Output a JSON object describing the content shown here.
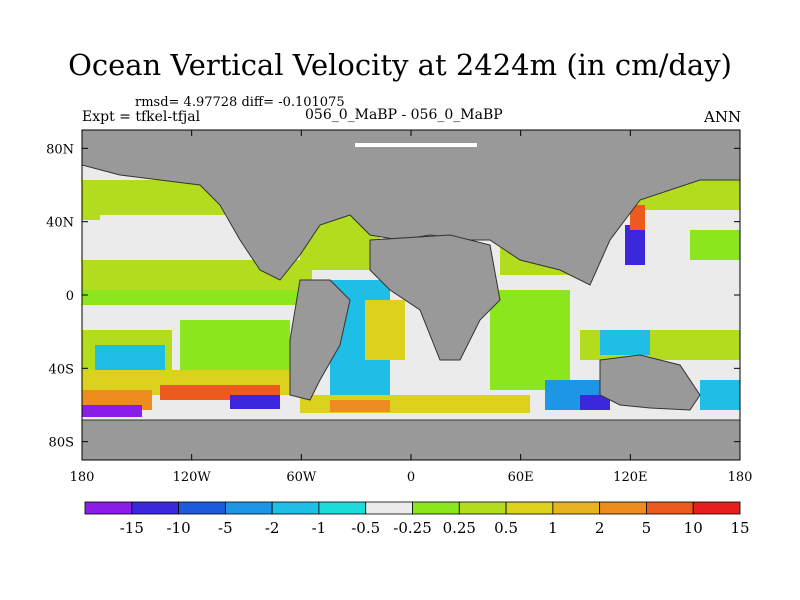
{
  "chart_data": {
    "type": "heatmap",
    "title": "Ocean Vertical Velocity at 2424m (in cm/day)",
    "stats": "rmsd= 4.97728 diff= -0.101075",
    "expt": "Expt = tfkel-tfjal",
    "cases": "056_0_MaBP - 056_0_MaBP",
    "season": "ANN",
    "x_ticks": [
      "180",
      "120W",
      "60W",
      "0",
      "60E",
      "120E",
      "180"
    ],
    "y_ticks": [
      "80N",
      "40N",
      "0",
      "40S",
      "80S"
    ],
    "xlim": [
      -180,
      180
    ],
    "ylim": [
      -90,
      90
    ],
    "land_color": "#999999",
    "colorbar": {
      "colors": [
        "#8a1ee6",
        "#3c28dc",
        "#1e5adc",
        "#1e96e6",
        "#1ebee6",
        "#1edcdc",
        "#ebebeb",
        "#8ce61e",
        "#b4dc1e",
        "#dcd21e",
        "#e6b41e",
        "#ee8c1e",
        "#ec5a1e",
        "#e61e1e"
      ],
      "labels": [
        "-15",
        "-10",
        "-5",
        "-2",
        "-1",
        "-0.5",
        "-0.25",
        "0.25",
        "0.5",
        "1",
        "2",
        "5",
        "10",
        "15"
      ]
    }
  }
}
